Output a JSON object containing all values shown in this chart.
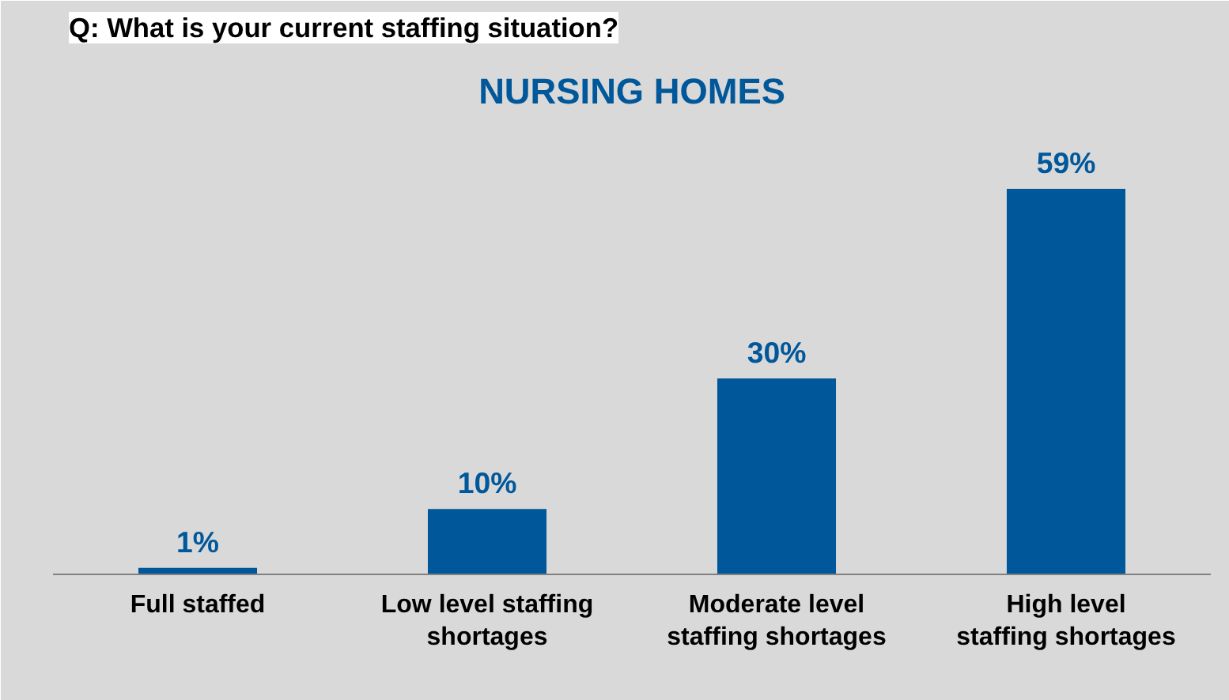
{
  "chart_data": {
    "type": "bar",
    "title": "Q: What is your current staffing situation?",
    "subtitle": "NURSING HOMES",
    "categories": [
      "Full staffed",
      "Low level staffing shortages",
      "Moderate level staffing shortages",
      "High level staffing shortages"
    ],
    "values": [
      1,
      10,
      30,
      59
    ],
    "value_labels": [
      "1%",
      "10%",
      "30%",
      "59%"
    ],
    "color": "#00589a",
    "grid": false
  }
}
